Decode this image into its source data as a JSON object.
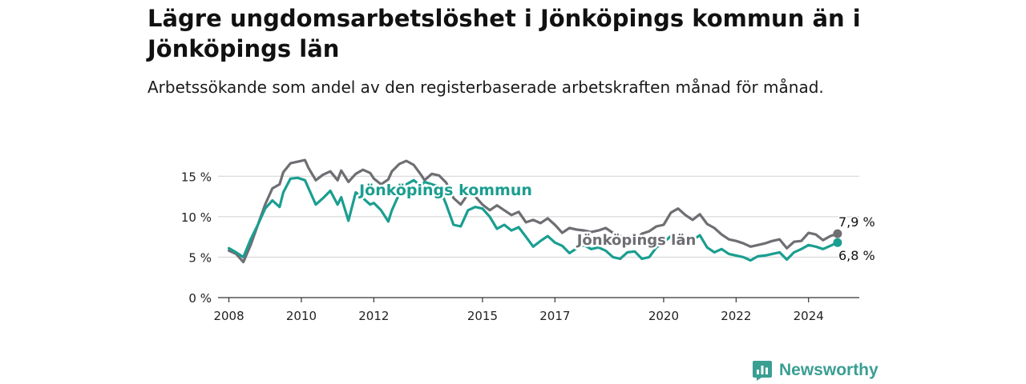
{
  "header": {
    "title": "Lägre ungdomsarbetslöshet i Jönköpings kommun än i Jönköpings län",
    "subtitle": "Arbetssökande som andel av den registerbaserade arbetskraften månad för månad."
  },
  "brand": {
    "name": "Newsworthy",
    "icon": "newsworthy-logo-icon",
    "color": "#3a9e93"
  },
  "chart_data": {
    "type": "line",
    "y_ticks": [
      {
        "value": 0,
        "label": "0 %"
      },
      {
        "value": 5,
        "label": "5 %"
      },
      {
        "value": 10,
        "label": "10 %"
      },
      {
        "value": 15,
        "label": "15 %"
      }
    ],
    "x_ticks": [
      {
        "value": 2008.0,
        "label": "2008"
      },
      {
        "value": 2010.0,
        "label": "2010"
      },
      {
        "value": 2012.0,
        "label": "2012"
      },
      {
        "value": 2015.0,
        "label": "2015"
      },
      {
        "value": 2017.0,
        "label": "2017"
      },
      {
        "value": 2020.0,
        "label": "2020"
      },
      {
        "value": 2022.0,
        "label": "2022"
      },
      {
        "value": 2024.0,
        "label": "2024"
      }
    ],
    "ylim": [
      0,
      17.5
    ],
    "xlim": [
      2007.7,
      2025.4
    ],
    "grid": true,
    "series": [
      {
        "name": "Jönköpings län",
        "color": "#6e6e73",
        "end_label": "7,9 %",
        "x": [
          2008.0,
          2008.2,
          2008.4,
          2008.6,
          2008.8,
          2009.0,
          2009.2,
          2009.4,
          2009.5,
          2009.7,
          2009.9,
          2010.1,
          2010.2,
          2010.4,
          2010.6,
          2010.8,
          2011.0,
          2011.1,
          2011.3,
          2011.5,
          2011.7,
          2011.9,
          2012.0,
          2012.2,
          2012.4,
          2012.5,
          2012.7,
          2012.9,
          2013.1,
          2013.3,
          2013.4,
          2013.6,
          2013.8,
          2014.0,
          2014.2,
          2014.4,
          2014.6,
          2014.8,
          2015.0,
          2015.2,
          2015.4,
          2015.6,
          2015.8,
          2016.0,
          2016.2,
          2016.4,
          2016.6,
          2016.8,
          2017.0,
          2017.2,
          2017.4,
          2017.6,
          2017.8,
          2018.0,
          2018.2,
          2018.4,
          2018.6,
          2018.8,
          2019.0,
          2019.2,
          2019.4,
          2019.6,
          2019.8,
          2020.0,
          2020.2,
          2020.4,
          2020.6,
          2020.8,
          2021.0,
          2021.2,
          2021.4,
          2021.6,
          2021.8,
          2022.0,
          2022.2,
          2022.4,
          2022.6,
          2022.8,
          2023.0,
          2023.2,
          2023.4,
          2023.6,
          2023.8,
          2024.0,
          2024.2,
          2024.4,
          2024.6,
          2024.8
        ],
        "y": [
          5.8,
          5.4,
          4.4,
          6.5,
          9.0,
          11.5,
          13.5,
          14.0,
          15.5,
          16.6,
          16.8,
          17.0,
          16.0,
          14.5,
          15.2,
          15.6,
          14.5,
          15.7,
          14.3,
          15.3,
          15.8,
          15.4,
          14.7,
          14.0,
          14.6,
          15.6,
          16.5,
          16.9,
          16.4,
          15.2,
          14.5,
          15.3,
          15.1,
          14.2,
          12.3,
          11.5,
          12.8,
          12.5,
          11.5,
          10.8,
          11.4,
          10.8,
          10.2,
          10.6,
          9.3,
          9.6,
          9.2,
          9.8,
          9.0,
          8.0,
          8.6,
          8.4,
          8.3,
          8.1,
          8.3,
          8.6,
          8.0,
          7.6,
          7.4,
          7.0,
          7.9,
          8.2,
          8.8,
          9.0,
          10.5,
          11.0,
          10.2,
          9.6,
          10.3,
          9.1,
          8.6,
          7.8,
          7.2,
          7.0,
          6.7,
          6.3,
          6.5,
          6.7,
          7.0,
          7.2,
          6.1,
          6.9,
          7.0,
          8.0,
          7.8,
          7.1,
          7.6,
          7.9
        ]
      },
      {
        "name": "Jönköpings kommun",
        "color": "#1a9e90",
        "end_label": "6,8 %",
        "x": [
          2008.0,
          2008.2,
          2008.4,
          2008.6,
          2008.8,
          2009.0,
          2009.2,
          2009.4,
          2009.5,
          2009.7,
          2009.9,
          2010.1,
          2010.2,
          2010.4,
          2010.6,
          2010.8,
          2011.0,
          2011.1,
          2011.3,
          2011.5,
          2011.7,
          2011.9,
          2012.0,
          2012.2,
          2012.4,
          2012.5,
          2012.7,
          2012.9,
          2013.1,
          2013.3,
          2013.4,
          2013.6,
          2013.8,
          2014.0,
          2014.2,
          2014.4,
          2014.6,
          2014.8,
          2015.0,
          2015.2,
          2015.4,
          2015.6,
          2015.8,
          2016.0,
          2016.2,
          2016.4,
          2016.6,
          2016.8,
          2017.0,
          2017.2,
          2017.4,
          2017.6,
          2017.8,
          2018.0,
          2018.2,
          2018.4,
          2018.6,
          2018.8,
          2019.0,
          2019.2,
          2019.4,
          2019.6,
          2019.8,
          2020.0,
          2020.2,
          2020.4,
          2020.6,
          2020.8,
          2021.0,
          2021.2,
          2021.4,
          2021.6,
          2021.8,
          2022.0,
          2022.2,
          2022.4,
          2022.6,
          2022.8,
          2023.0,
          2023.2,
          2023.4,
          2023.6,
          2023.8,
          2024.0,
          2024.2,
          2024.4,
          2024.6,
          2024.8
        ],
        "y": [
          6.1,
          5.6,
          5.0,
          7.2,
          9.0,
          11.0,
          12.0,
          11.2,
          13.0,
          14.7,
          14.8,
          14.5,
          13.5,
          11.5,
          12.3,
          13.2,
          11.5,
          12.4,
          9.5,
          13.0,
          12.3,
          11.5,
          11.7,
          10.8,
          9.4,
          10.8,
          12.8,
          14.0,
          14.5,
          13.8,
          14.3,
          14.0,
          13.7,
          11.5,
          9.0,
          8.8,
          10.8,
          11.2,
          11.0,
          10.0,
          8.5,
          9.0,
          8.3,
          8.7,
          7.5,
          6.3,
          7.0,
          7.6,
          6.8,
          6.4,
          5.5,
          6.1,
          6.5,
          6.0,
          6.2,
          5.8,
          5.0,
          4.8,
          5.6,
          5.7,
          4.8,
          5.0,
          6.2,
          6.8,
          7.6,
          7.0,
          6.6,
          7.1,
          7.7,
          6.2,
          5.6,
          6.0,
          5.4,
          5.2,
          5.0,
          4.6,
          5.1,
          5.2,
          5.4,
          5.6,
          4.7,
          5.6,
          6.0,
          6.5,
          6.3,
          6.0,
          6.4,
          6.8
        ]
      }
    ],
    "annotations": [
      {
        "text": "Jönköpings kommun",
        "series": 1
      },
      {
        "text": "Jönköpings län",
        "series": 0
      }
    ]
  }
}
